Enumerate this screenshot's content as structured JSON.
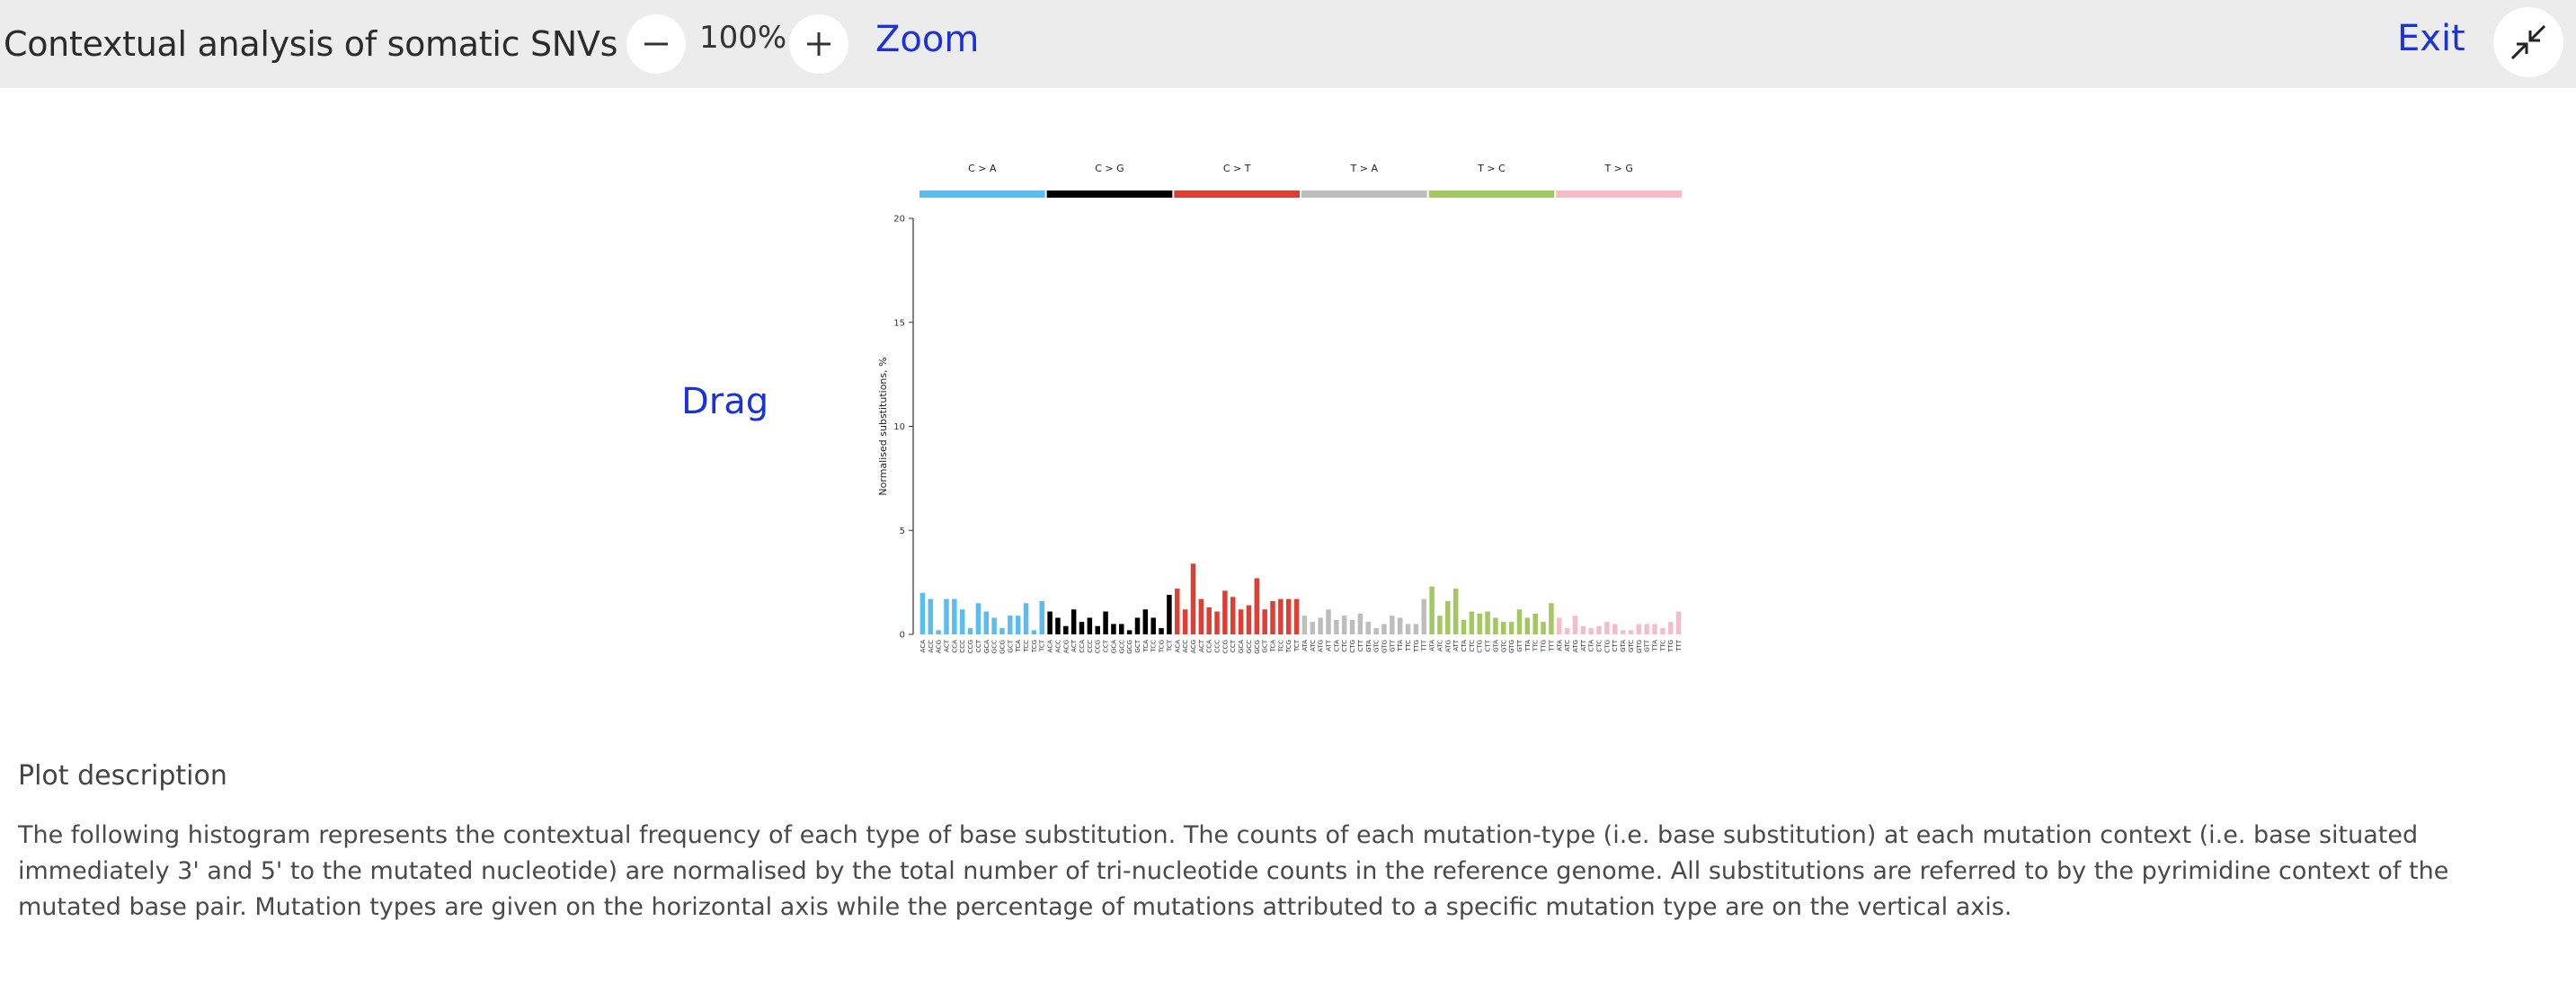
{
  "header": {
    "title": "Contextual analysis of somatic SNVs",
    "zoom_level": "100%",
    "zoom_label": "Zoom",
    "exit_label": "Exit"
  },
  "drag_label": "Drag",
  "description": {
    "title": "Plot description",
    "text": "The following histogram represents the contextual frequency of each type of base substitution. The counts of each mutation-type (i.e. base substitution) at each mutation context (i.e. base situated immediately 3' and 5' to the mutated nucleotide) are normalised by the total number of tri-nucleotide counts in the reference genome. All substitutions are referred to by the pyrimidine context of the mutated base pair. Mutation types are given on the horizontal axis while the percentage of mutations attributed to a specific mutation type are on the vertical axis."
  },
  "chart_data": {
    "type": "bar",
    "ylabel": "Normalised substitutions, %",
    "xlabel": "",
    "ylim": [
      0,
      20
    ],
    "yticks": [
      0,
      5,
      10,
      15,
      20
    ],
    "groups": [
      {
        "name": "C > A",
        "color": "#5bbcf0",
        "categories": [
          "ACA",
          "ACC",
          "ACG",
          "ACT",
          "CCA",
          "CCC",
          "CCG",
          "CCT",
          "GCA",
          "GCC",
          "GCG",
          "GCT",
          "TCA",
          "TCC",
          "TCG",
          "TCT"
        ],
        "values": [
          2.0,
          1.7,
          0.2,
          1.7,
          1.7,
          1.2,
          0.3,
          1.5,
          1.1,
          0.8,
          0.3,
          0.9,
          0.9,
          1.5,
          0.2,
          1.6
        ]
      },
      {
        "name": "C > G",
        "color": "#000000",
        "categories": [
          "ACA",
          "ACC",
          "ACG",
          "ACT",
          "CCA",
          "CCC",
          "CCG",
          "CCT",
          "GCA",
          "GCC",
          "GCG",
          "GCT",
          "TCA",
          "TCC",
          "TCG",
          "TCT"
        ],
        "values": [
          1.1,
          0.8,
          0.4,
          1.2,
          0.6,
          0.8,
          0.4,
          1.1,
          0.5,
          0.5,
          0.2,
          0.8,
          1.2,
          0.8,
          0.3,
          1.9
        ]
      },
      {
        "name": "C > T",
        "color": "#dd3f35",
        "categories": [
          "ACA",
          "ACC",
          "ACG",
          "ACT",
          "CCA",
          "CCC",
          "CCG",
          "CCT",
          "GCA",
          "GCC",
          "GCG",
          "GCT",
          "TCA",
          "TCC",
          "TCG",
          "TCT"
        ],
        "values": [
          2.2,
          1.2,
          3.4,
          1.7,
          1.3,
          1.1,
          2.1,
          1.8,
          1.2,
          1.4,
          2.7,
          1.2,
          1.6,
          1.7,
          1.7,
          1.7
        ]
      },
      {
        "name": "T > A",
        "color": "#bdbdbd",
        "categories": [
          "ATA",
          "ATC",
          "ATG",
          "ATT",
          "CTA",
          "CTC",
          "CTG",
          "CTT",
          "GTA",
          "GTC",
          "GTG",
          "GTT",
          "TTA",
          "TTC",
          "TTG",
          "TTT"
        ],
        "values": [
          0.9,
          0.6,
          0.8,
          1.2,
          0.7,
          0.9,
          0.7,
          1.0,
          0.6,
          0.3,
          0.5,
          0.9,
          0.8,
          0.5,
          0.5,
          1.7
        ]
      },
      {
        "name": "T > C",
        "color": "#a3c862",
        "categories": [
          "ATA",
          "ATC",
          "ATG",
          "ATT",
          "CTA",
          "CTC",
          "CTG",
          "CTT",
          "GTA",
          "GTC",
          "GTG",
          "GTT",
          "TTA",
          "TTC",
          "TTG",
          "TTT"
        ],
        "values": [
          2.3,
          0.9,
          1.6,
          2.2,
          0.7,
          1.1,
          1.0,
          1.1,
          0.8,
          0.6,
          0.6,
          1.2,
          0.8,
          1.0,
          0.6,
          1.5
        ]
      },
      {
        "name": "T > G",
        "color": "#f5bdc9",
        "categories": [
          "ATA",
          "ATC",
          "ATG",
          "ATT",
          "CTA",
          "CTC",
          "CTG",
          "CTT",
          "GTA",
          "GTC",
          "GTG",
          "GTT",
          "TTA",
          "TTC",
          "TTG",
          "TTT"
        ],
        "values": [
          0.8,
          0.3,
          0.9,
          0.4,
          0.3,
          0.4,
          0.6,
          0.5,
          0.2,
          0.2,
          0.5,
          0.5,
          0.5,
          0.3,
          0.6,
          1.1
        ]
      }
    ]
  }
}
